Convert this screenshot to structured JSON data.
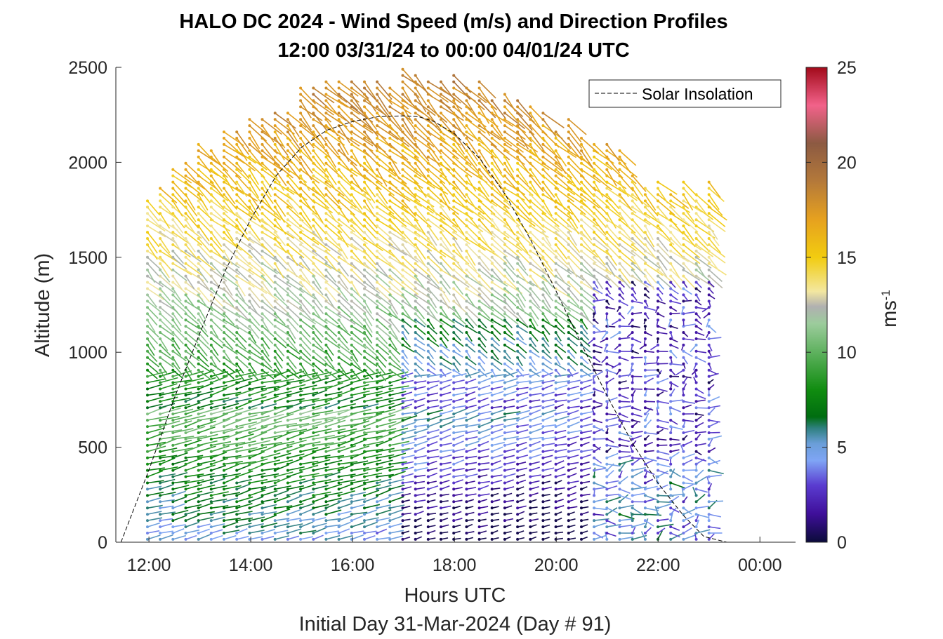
{
  "chart_data": {
    "type": "scatter",
    "subtype": "wind-barb profile (speed colored, direction as barb)",
    "title_line1": "HALO DC 2024 - Wind Speed (m/s) and Direction Profiles",
    "title_line2": "12:00 03/31/24 to 00:00 04/01/24  UTC",
    "xlabel": "Hours UTC",
    "xlabel2": "Initial Day 31-Mar-2024 (Day # 91)",
    "ylabel": "Altitude (m)",
    "x_tick_labels": [
      "12:00",
      "14:00",
      "16:00",
      "18:00",
      "20:00",
      "22:00",
      "00:00"
    ],
    "x_tick_hours": [
      12,
      14,
      16,
      18,
      20,
      22,
      24
    ],
    "xlim_hours": [
      11.35,
      24.7
    ],
    "y_ticks": [
      0,
      500,
      1000,
      1500,
      2000,
      2500
    ],
    "ylim": [
      0,
      2500
    ],
    "colorbar": {
      "label": "ms",
      "label_exponent": "-1",
      "ticks": [
        0,
        5,
        10,
        15,
        20,
        25
      ],
      "range": [
        0,
        25
      ],
      "colors": [
        {
          "v": 0,
          "c": "#0b0b3a"
        },
        {
          "v": 1.5,
          "c": "#3f0f9a"
        },
        {
          "v": 3,
          "c": "#5a3cd0"
        },
        {
          "v": 4.3,
          "c": "#7fa5f5"
        },
        {
          "v": 5.2,
          "c": "#6a9ed8"
        },
        {
          "v": 6,
          "c": "#2f8080"
        },
        {
          "v": 6.6,
          "c": "#006d10"
        },
        {
          "v": 8,
          "c": "#108c10"
        },
        {
          "v": 9.5,
          "c": "#4aa84a"
        },
        {
          "v": 11.5,
          "c": "#9ccc9c"
        },
        {
          "v": 12.4,
          "c": "#b0b0b0"
        },
        {
          "v": 13.2,
          "c": "#f3e7a0"
        },
        {
          "v": 15,
          "c": "#f2cc10"
        },
        {
          "v": 17,
          "c": "#e6a11f"
        },
        {
          "v": 19,
          "c": "#b4793a"
        },
        {
          "v": 21,
          "c": "#8c5a42"
        },
        {
          "v": 23,
          "c": "#f2628a"
        },
        {
          "v": 25,
          "c": "#a20a1a"
        }
      ]
    },
    "legend": {
      "entries": [
        "Solar Insolation"
      ],
      "placement": "top-right"
    },
    "solar_insolation": {
      "line_style": "dashed",
      "color": "#000000",
      "x_hours": [
        11.45,
        12.0,
        12.5,
        13.0,
        13.5,
        14.0,
        14.5,
        15.0,
        15.5,
        16.0,
        16.5,
        17.0,
        17.3,
        17.6,
        18.0,
        18.5,
        19.0,
        19.5,
        20.0,
        20.5,
        21.0,
        21.5,
        22.0,
        22.5,
        22.9,
        23.35,
        24.7
      ],
      "y_m": [
        0,
        380,
        760,
        1100,
        1430,
        1700,
        1930,
        2080,
        2170,
        2215,
        2240,
        2245,
        2240,
        2215,
        2150,
        2020,
        1830,
        1590,
        1320,
        1040,
        770,
        520,
        310,
        140,
        30,
        0,
        0
      ]
    },
    "profiles": {
      "start_hour": 11.97,
      "end_hour": 23.0,
      "count": 45,
      "level_spacing_m": 33,
      "direction_from_deg_lower": 245,
      "direction_from_deg_upper": 330
    }
  }
}
